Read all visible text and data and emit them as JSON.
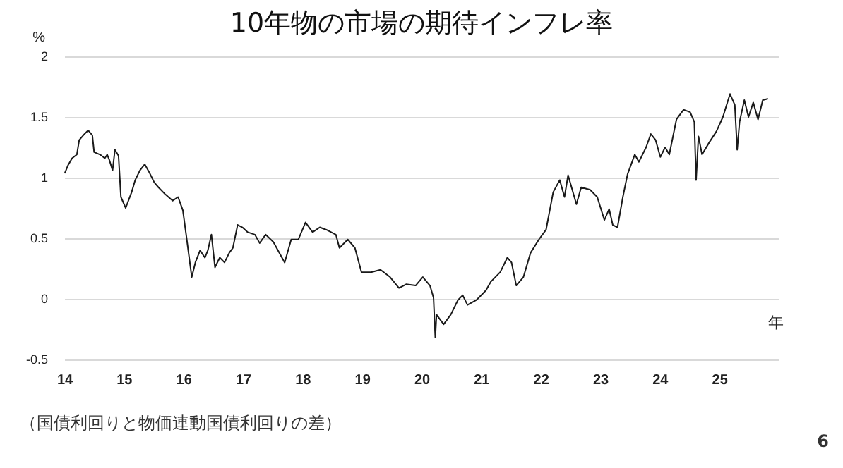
{
  "chart_data": {
    "type": "line",
    "title": "10年物の市場の期待インフレ率",
    "xlabel": "年",
    "ylabel": "%",
    "annotations": [
      "（国債利回りと物価連動国債利回りの差）",
      "6"
    ],
    "xlim": [
      2014,
      2026
    ],
    "xticks": [
      {
        "value": 2014,
        "label": "14"
      },
      {
        "value": 2015,
        "label": "15"
      },
      {
        "value": 2016,
        "label": "16"
      },
      {
        "value": 2017,
        "label": "17"
      },
      {
        "value": 2018,
        "label": "18"
      },
      {
        "value": 2019,
        "label": "19"
      },
      {
        "value": 2020,
        "label": "20"
      },
      {
        "value": 2021,
        "label": "21"
      },
      {
        "value": 2022,
        "label": "22"
      },
      {
        "value": 2023,
        "label": "23"
      },
      {
        "value": 2024,
        "label": "24"
      },
      {
        "value": 2025,
        "label": "25"
      }
    ],
    "ylim": [
      -0.5,
      2
    ],
    "yticks": [
      -0.5,
      0,
      0.5,
      1,
      1.5,
      2
    ],
    "grid": "y",
    "marker": "none",
    "line_style": "solid",
    "series": [
      {
        "color": "#1a1a1a",
        "x": [
          2014.0,
          2014.05,
          2014.12,
          2014.2,
          2014.24,
          2014.31,
          2014.39,
          2014.46,
          2014.49,
          2014.59,
          2014.67,
          2014.71,
          2014.75,
          2014.8,
          2014.84,
          2014.9,
          2014.94,
          2015.02,
          2015.12,
          2015.18,
          2015.26,
          2015.34,
          2015.42,
          2015.5,
          2015.57,
          2015.69,
          2015.81,
          2015.9,
          2015.98,
          2016.03,
          2016.13,
          2016.19,
          2016.27,
          2016.35,
          2016.4,
          2016.46,
          2016.52,
          2016.6,
          2016.68,
          2016.76,
          2016.82,
          2016.9,
          2016.98,
          2017.07,
          2017.19,
          2017.27,
          2017.37,
          2017.5,
          2017.69,
          2017.8,
          2017.92,
          2018.04,
          2018.16,
          2018.28,
          2018.39,
          2018.55,
          2018.61,
          2018.75,
          2018.87,
          2018.98,
          2019.14,
          2019.3,
          2019.46,
          2019.61,
          2019.73,
          2019.89,
          2020.01,
          2020.13,
          2020.19,
          2020.22,
          2020.24,
          2020.36,
          2020.48,
          2020.6,
          2020.68,
          2020.76,
          2020.91,
          2021.07,
          2021.15,
          2021.31,
          2021.43,
          2021.5,
          2021.58,
          2021.7,
          2021.82,
          2021.96,
          2022.08,
          2022.2,
          2022.31,
          2022.39,
          2022.45,
          2022.59,
          2022.67,
          2022.82,
          2022.94,
          2023.06,
          2023.14,
          2023.2,
          2023.28,
          2023.37,
          2023.45,
          2023.57,
          2023.64,
          2023.76,
          2023.84,
          2023.92,
          2024.0,
          2024.08,
          2024.15,
          2024.27,
          2024.39,
          2024.5,
          2024.57,
          2024.6,
          2024.64,
          2024.7,
          2024.82,
          2024.94,
          2025.05,
          2025.17,
          2025.25,
          2025.29,
          2025.33,
          2025.41,
          2025.48,
          2025.56,
          2025.64,
          2025.72,
          2025.8
        ],
        "values": [
          1.04,
          1.1,
          1.16,
          1.19,
          1.31,
          1.35,
          1.39,
          1.35,
          1.21,
          1.19,
          1.16,
          1.19,
          1.14,
          1.06,
          1.23,
          1.18,
          0.84,
          0.75,
          0.88,
          0.98,
          1.06,
          1.11,
          1.04,
          0.96,
          0.92,
          0.86,
          0.81,
          0.84,
          0.73,
          0.55,
          0.18,
          0.3,
          0.4,
          0.34,
          0.4,
          0.53,
          0.26,
          0.34,
          0.3,
          0.38,
          0.42,
          0.61,
          0.59,
          0.55,
          0.53,
          0.46,
          0.53,
          0.47,
          0.3,
          0.49,
          0.49,
          0.63,
          0.55,
          0.59,
          0.57,
          0.53,
          0.42,
          0.49,
          0.42,
          0.22,
          0.22,
          0.24,
          0.18,
          0.09,
          0.12,
          0.11,
          0.18,
          0.11,
          0.01,
          -0.32,
          -0.13,
          -0.21,
          -0.13,
          -0.01,
          0.03,
          -0.05,
          -0.01,
          0.07,
          0.14,
          0.22,
          0.34,
          0.3,
          0.11,
          0.18,
          0.38,
          0.49,
          0.57,
          0.88,
          0.98,
          0.84,
          1.02,
          0.78,
          0.92,
          0.9,
          0.84,
          0.65,
          0.74,
          0.61,
          0.59,
          0.84,
          1.03,
          1.19,
          1.13,
          1.25,
          1.36,
          1.31,
          1.17,
          1.25,
          1.19,
          1.48,
          1.56,
          1.54,
          1.46,
          0.98,
          1.34,
          1.19,
          1.29,
          1.38,
          1.5,
          1.69,
          1.6,
          1.23,
          1.46,
          1.64,
          1.5,
          1.62,
          1.48,
          1.64,
          1.65
        ]
      }
    ]
  }
}
